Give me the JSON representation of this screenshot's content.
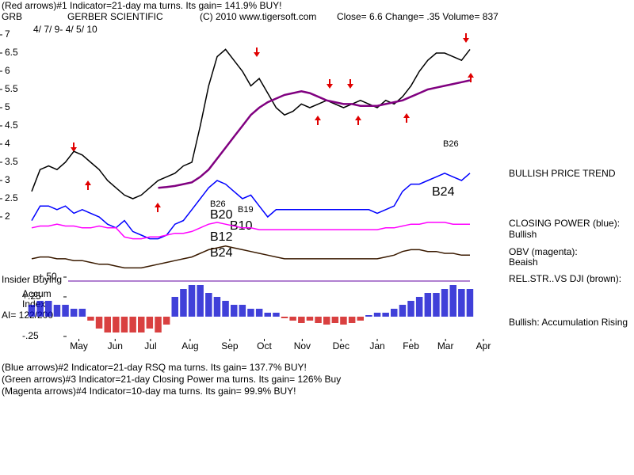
{
  "chart_data": [
    {
      "type": "line",
      "header_line": "(Red arrows)#1 Indicator=21-day ma turns. Its gain= 141.9% BUY!",
      "symbol": "GRB",
      "title": "GERBER SCIENTIFIC",
      "copyright": "(C) 2010 www.tigersoft.com",
      "quote": "Close=  6.6  Change= .35 Volume= 837",
      "subtitle": "4/ 7/ 9- 4/ 5/ 10",
      "side_labels": [
        "BULLISH PRICE TREND",
        "CLOSING POWER (blue):",
        "Bullish",
        "OBV (magenta):",
        "Beaish",
        "REL.STR..VS DJI (brown):"
      ],
      "annotations": [
        "B26",
        "B24",
        "B19",
        "B26",
        "B20",
        "B10",
        "B12",
        "B24"
      ],
      "footer_lines": [
        "(Blue arrows)#2 Indicator=21-day RSQ ma turns. Its gain= 137.7% BUY!",
        "(Green arrows)#3 Indicator=21-day Closing Power ma turns. Its gain= 126% Buy",
        "(Magenta arrows)#4 Indicator=10-day ma turns. Its gain= 99.9% BUY!"
      ],
      "x": [
        0,
        1,
        2,
        3,
        4,
        5,
        6,
        7,
        8,
        9,
        10,
        11,
        12,
        13,
        14,
        15,
        16,
        17,
        18,
        19,
        20,
        21,
        22,
        23,
        24,
        25,
        26,
        27,
        28,
        29,
        30,
        31,
        32,
        33,
        34,
        35,
        36,
        37,
        38,
        39,
        40,
        41,
        42,
        43,
        44,
        45,
        46,
        47,
        48,
        49,
        50,
        51,
        52
      ],
      "xlim": [
        0,
        52
      ],
      "ylim": [
        0.25,
        7.3
      ],
      "yticks": [
        7,
        6.5,
        6,
        5.5,
        5,
        4.5,
        4,
        3.5,
        3,
        2.5,
        2
      ],
      "series": [
        {
          "name": "Price",
          "color": "#000000",
          "values": [
            2.7,
            3.3,
            3.4,
            3.3,
            3.5,
            3.8,
            3.7,
            3.5,
            3.3,
            3.0,
            2.8,
            2.6,
            2.5,
            2.6,
            2.8,
            3.0,
            3.1,
            3.2,
            3.4,
            3.5,
            4.5,
            5.6,
            6.4,
            6.6,
            6.3,
            6.0,
            5.6,
            5.8,
            5.4,
            5.0,
            4.8,
            4.9,
            5.1,
            5.0,
            5.1,
            5.2,
            5.1,
            5.0,
            5.1,
            5.2,
            5.1,
            5.0,
            5.2,
            5.1,
            5.3,
            5.6,
            6.0,
            6.3,
            6.5,
            6.5,
            6.4,
            6.3,
            6.6
          ]
        },
        {
          "name": "21-day ma",
          "color": "#800080",
          "values": [
            null,
            null,
            null,
            null,
            null,
            null,
            null,
            null,
            null,
            null,
            null,
            null,
            null,
            null,
            null,
            2.8,
            2.82,
            2.85,
            2.9,
            2.95,
            3.1,
            3.3,
            3.6,
            3.9,
            4.2,
            4.5,
            4.8,
            5.0,
            5.15,
            5.25,
            5.35,
            5.4,
            5.45,
            5.4,
            5.3,
            5.2,
            5.15,
            5.1,
            5.1,
            5.05,
            5.05,
            5.05,
            5.1,
            5.15,
            5.2,
            5.3,
            5.4,
            5.5,
            5.55,
            5.6,
            5.65,
            5.7,
            5.75
          ]
        },
        {
          "name": "Closing Power",
          "color": "#0000ff",
          "values": [
            1.9,
            2.3,
            2.3,
            2.2,
            2.3,
            2.1,
            2.2,
            2.1,
            2.0,
            1.8,
            1.7,
            1.9,
            1.6,
            1.5,
            1.4,
            1.4,
            1.5,
            1.8,
            1.9,
            2.2,
            2.5,
            2.8,
            3.0,
            2.9,
            2.7,
            2.5,
            2.6,
            2.3,
            2.0,
            2.2,
            2.2,
            2.2,
            2.2,
            2.2,
            2.2,
            2.2,
            2.2,
            2.2,
            2.2,
            2.2,
            2.2,
            2.1,
            2.2,
            2.3,
            2.7,
            2.9,
            2.9,
            3.0,
            3.1,
            3.2,
            3.1,
            3.0,
            3.2
          ]
        },
        {
          "name": "OBV",
          "color": "#ff00ff",
          "values": [
            1.7,
            1.75,
            1.75,
            1.8,
            1.75,
            1.75,
            1.7,
            1.7,
            1.75,
            1.7,
            1.7,
            1.45,
            1.4,
            1.4,
            1.45,
            1.45,
            1.5,
            1.55,
            1.55,
            1.6,
            1.7,
            1.8,
            1.85,
            1.8,
            1.75,
            1.7,
            1.7,
            1.65,
            1.65,
            1.65,
            1.65,
            1.65,
            1.65,
            1.65,
            1.65,
            1.65,
            1.65,
            1.65,
            1.65,
            1.65,
            1.65,
            1.65,
            1.7,
            1.7,
            1.75,
            1.8,
            1.8,
            1.85,
            1.85,
            1.85,
            1.8,
            1.8,
            1.8
          ]
        },
        {
          "name": "Rel. Str. vs DJI",
          "color": "#3a1a00",
          "values": [
            0.85,
            0.9,
            0.9,
            0.85,
            0.85,
            0.8,
            0.8,
            0.75,
            0.7,
            0.7,
            0.65,
            0.6,
            0.6,
            0.6,
            0.65,
            0.7,
            0.75,
            0.8,
            0.85,
            0.9,
            1.0,
            1.1,
            1.15,
            1.2,
            1.15,
            1.1,
            1.05,
            1.0,
            0.95,
            0.9,
            0.85,
            0.85,
            0.85,
            0.85,
            0.85,
            0.85,
            0.85,
            0.85,
            0.85,
            0.85,
            0.85,
            0.85,
            0.9,
            0.95,
            1.05,
            1.1,
            1.1,
            1.05,
            1.05,
            1.0,
            1.0,
            0.95,
            0.95
          ]
        }
      ]
    },
    {
      "type": "bar",
      "panel_labels": [
        "Insider Buying",
        "Accum",
        "Index",
        "AI= 122/200"
      ],
      "side_labels": [
        "Bullish: Accumulation Rising"
      ],
      "x": [
        0,
        1,
        2,
        3,
        4,
        5,
        6,
        7,
        8,
        9,
        10,
        11,
        12,
        13,
        14,
        15,
        16,
        17,
        18,
        19,
        20,
        21,
        22,
        23,
        24,
        25,
        26,
        27,
        28,
        29,
        30,
        31,
        32,
        33,
        34,
        35,
        36,
        37,
        38,
        39,
        40,
        41,
        42,
        43,
        44,
        45,
        46,
        47,
        48,
        49,
        50,
        51,
        52
      ],
      "xlim": [
        0,
        52
      ],
      "xticks": [
        {
          "value": 5.6,
          "label": "May"
        },
        {
          "value": 9.9,
          "label": "Jun"
        },
        {
          "value": 14.1,
          "label": "Jul"
        },
        {
          "value": 18.8,
          "label": "Aug"
        },
        {
          "value": 23.5,
          "label": "Sep"
        },
        {
          "value": 27.6,
          "label": "Oct"
        },
        {
          "value": 32.1,
          "label": "Nov"
        },
        {
          "value": 36.7,
          "label": "Dec"
        },
        {
          "value": 41,
          "label": "Jan"
        },
        {
          "value": 45,
          "label": "Feb"
        },
        {
          "value": 49.1,
          "label": "Mar"
        },
        {
          "value": 53.6,
          "label": "Apr"
        }
      ],
      "ylim": [
        -0.3,
        0.55
      ],
      "yticks": [
        {
          "value": 0.5,
          "label": "+.50"
        },
        {
          "value": 0.25,
          "label": "+.25"
        },
        {
          "value": -0.25,
          "label": "-.25"
        }
      ],
      "positive_color": "#0000cc",
      "negative_color": "#cc0000",
      "values": [
        0.15,
        0.2,
        0.2,
        0.15,
        0.15,
        0.1,
        0.1,
        -0.05,
        -0.15,
        -0.2,
        -0.2,
        -0.2,
        -0.2,
        -0.2,
        -0.15,
        -0.2,
        -0.1,
        0.25,
        0.35,
        0.4,
        0.4,
        0.3,
        0.25,
        0.2,
        0.15,
        0.15,
        0.1,
        0.1,
        0.05,
        0.05,
        -0.02,
        -0.05,
        -0.08,
        -0.05,
        -0.08,
        -0.1,
        -0.08,
        -0.1,
        -0.08,
        -0.05,
        0.02,
        0.05,
        0.05,
        0.1,
        0.15,
        0.2,
        0.25,
        0.3,
        0.3,
        0.35,
        0.4,
        0.35,
        0.35
      ]
    }
  ]
}
